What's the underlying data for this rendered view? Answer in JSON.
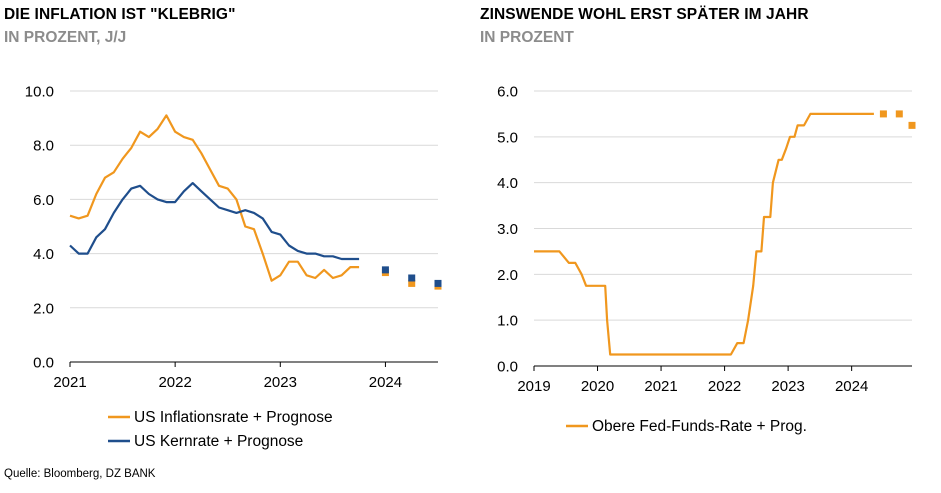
{
  "colors": {
    "orange": "#F0971E",
    "navy": "#1F4E8C",
    "grid": "#D9D9D9",
    "axis": "#000000",
    "subtitle": "#8C8C8C"
  },
  "source": "Quelle: Bloomberg, DZ BANK",
  "chart_data": [
    {
      "type": "line",
      "title": "DIE INFLATION IST \"KLEBRIG\"",
      "subtitle": "IN PROZENT, J/J",
      "ylim": [
        0,
        10
      ],
      "yticks": [
        "0.0",
        "2.0",
        "4.0",
        "6.0",
        "8.0",
        "10.0"
      ],
      "ytick_values": [
        0,
        2,
        4,
        6,
        8,
        10
      ],
      "xlim": [
        2021.0,
        2024.5
      ],
      "xticks": [
        "2021",
        "2022",
        "2023",
        "2024"
      ],
      "xtick_values": [
        2021,
        2022,
        2023,
        2024
      ],
      "legend_position": "bottom",
      "series": [
        {
          "name": "US Inflationsrate + Prognose",
          "color": "orange",
          "x": [
            2021.0,
            2021.083,
            2021.167,
            2021.25,
            2021.333,
            2021.417,
            2021.5,
            2021.583,
            2021.667,
            2021.75,
            2021.833,
            2021.917,
            2022.0,
            2022.083,
            2022.167,
            2022.25,
            2022.333,
            2022.417,
            2022.5,
            2022.583,
            2022.667,
            2022.75,
            2022.833,
            2022.917,
            2023.0,
            2023.083,
            2023.167,
            2023.25,
            2023.333,
            2023.417,
            2023.5,
            2023.583,
            2023.667,
            2023.75
          ],
          "values": [
            5.4,
            5.3,
            5.4,
            6.2,
            6.8,
            7.0,
            7.5,
            7.9,
            8.5,
            8.3,
            8.6,
            9.1,
            8.5,
            8.3,
            8.2,
            7.7,
            7.1,
            6.5,
            6.4,
            6.0,
            5.0,
            4.9,
            4.0,
            3.0,
            3.2,
            3.7,
            3.7,
            3.2,
            3.1,
            3.4,
            3.1,
            3.2,
            3.5,
            3.5
          ],
          "forecast_x": [
            2024.0,
            2024.25,
            2024.5
          ],
          "forecast_values": [
            3.3,
            2.9,
            2.8
          ]
        },
        {
          "name": "US Kernrate + Prognose",
          "color": "navy",
          "x": [
            2021.0,
            2021.083,
            2021.167,
            2021.25,
            2021.333,
            2021.417,
            2021.5,
            2021.583,
            2021.667,
            2021.75,
            2021.833,
            2021.917,
            2022.0,
            2022.083,
            2022.167,
            2022.25,
            2022.333,
            2022.417,
            2022.5,
            2022.583,
            2022.667,
            2022.75,
            2022.833,
            2022.917,
            2023.0,
            2023.083,
            2023.167,
            2023.25,
            2023.333,
            2023.417,
            2023.5,
            2023.583,
            2023.667,
            2023.75
          ],
          "values": [
            4.3,
            4.0,
            4.0,
            4.6,
            4.9,
            5.5,
            6.0,
            6.4,
            6.5,
            6.2,
            6.0,
            5.9,
            5.9,
            6.3,
            6.6,
            6.3,
            6.0,
            5.7,
            5.6,
            5.5,
            5.6,
            5.5,
            5.3,
            4.8,
            4.7,
            4.3,
            4.1,
            4.0,
            4.0,
            3.9,
            3.9,
            3.8,
            3.8,
            3.8
          ],
          "forecast_x": [
            2024.0,
            2024.25,
            2024.5
          ],
          "forecast_values": [
            3.4,
            3.1,
            2.9
          ]
        }
      ]
    },
    {
      "type": "line",
      "title": "ZINSWENDE WOHL ERST SPÄTER IM JAHR",
      "subtitle": "IN PROZENT",
      "ylim": [
        0,
        6
      ],
      "yticks": [
        "0.0",
        "1.0",
        "2.0",
        "3.0",
        "4.0",
        "5.0",
        "6.0"
      ],
      "ytick_values": [
        0,
        1,
        2,
        3,
        4,
        5,
        6
      ],
      "xlim": [
        2019.0,
        2024.95
      ],
      "xticks": [
        "2019",
        "2020",
        "2021",
        "2022",
        "2023",
        "2024"
      ],
      "xtick_values": [
        2019,
        2020,
        2021,
        2022,
        2023,
        2024
      ],
      "legend_position": "bottom",
      "series": [
        {
          "name": "Obere Fed-Funds-Rate + Prog.",
          "color": "orange",
          "x": [
            2019.0,
            2019.4,
            2019.55,
            2019.65,
            2019.75,
            2019.82,
            2020.12,
            2020.15,
            2020.2,
            2022.1,
            2022.2,
            2022.3,
            2022.37,
            2022.45,
            2022.5,
            2022.58,
            2022.62,
            2022.72,
            2022.76,
            2022.85,
            2022.9,
            2022.97,
            2023.03,
            2023.1,
            2023.15,
            2023.25,
            2023.35,
            2023.45,
            2023.5,
            2023.55,
            2024.35
          ],
          "values": [
            2.5,
            2.5,
            2.25,
            2.25,
            2.0,
            1.75,
            1.75,
            1.0,
            0.25,
            0.25,
            0.5,
            0.5,
            1.0,
            1.75,
            2.5,
            2.5,
            3.25,
            3.25,
            4.0,
            4.5,
            4.5,
            4.75,
            5.0,
            5.0,
            5.25,
            5.25,
            5.5,
            5.5,
            5.5,
            5.5,
            5.5
          ],
          "forecast_x": [
            2024.5,
            2024.75,
            2024.95
          ],
          "forecast_values": [
            5.5,
            5.5,
            5.25
          ]
        }
      ]
    }
  ]
}
